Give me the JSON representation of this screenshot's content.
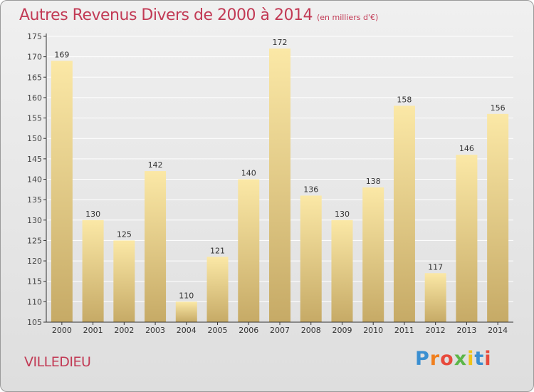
{
  "header": {
    "title": "Autres Revenus Divers de 2000 à 2014",
    "subtitle": "(en milliers d'€)"
  },
  "footer": {
    "place": "VILLEDIEU",
    "logo_text": "Proxiti",
    "logo_colors": [
      "#3a8fd1",
      "#f07f1e",
      "#e84a3c",
      "#5cb648",
      "#f0c419",
      "#3a8fd1",
      "#e84a3c"
    ]
  },
  "colors": {
    "bar_top": "#fbe8a6",
    "bar_bottom": "#c6aa66",
    "grid": "#ffffff",
    "axis": "#333333",
    "title": "#c23a55"
  },
  "chart_data": {
    "type": "bar",
    "categories": [
      "2000",
      "2001",
      "2002",
      "2003",
      "2004",
      "2005",
      "2006",
      "2007",
      "2008",
      "2009",
      "2010",
      "2011",
      "2012",
      "2013",
      "2014"
    ],
    "values": [
      169,
      130,
      125,
      142,
      110,
      121,
      140,
      172,
      136,
      130,
      138,
      158,
      117,
      146,
      156
    ],
    "ylim": [
      105,
      175
    ],
    "yticks": [
      105,
      110,
      115,
      120,
      125,
      130,
      135,
      140,
      145,
      150,
      155,
      160,
      165,
      170,
      175
    ],
    "grid": true,
    "data_labels": true
  }
}
